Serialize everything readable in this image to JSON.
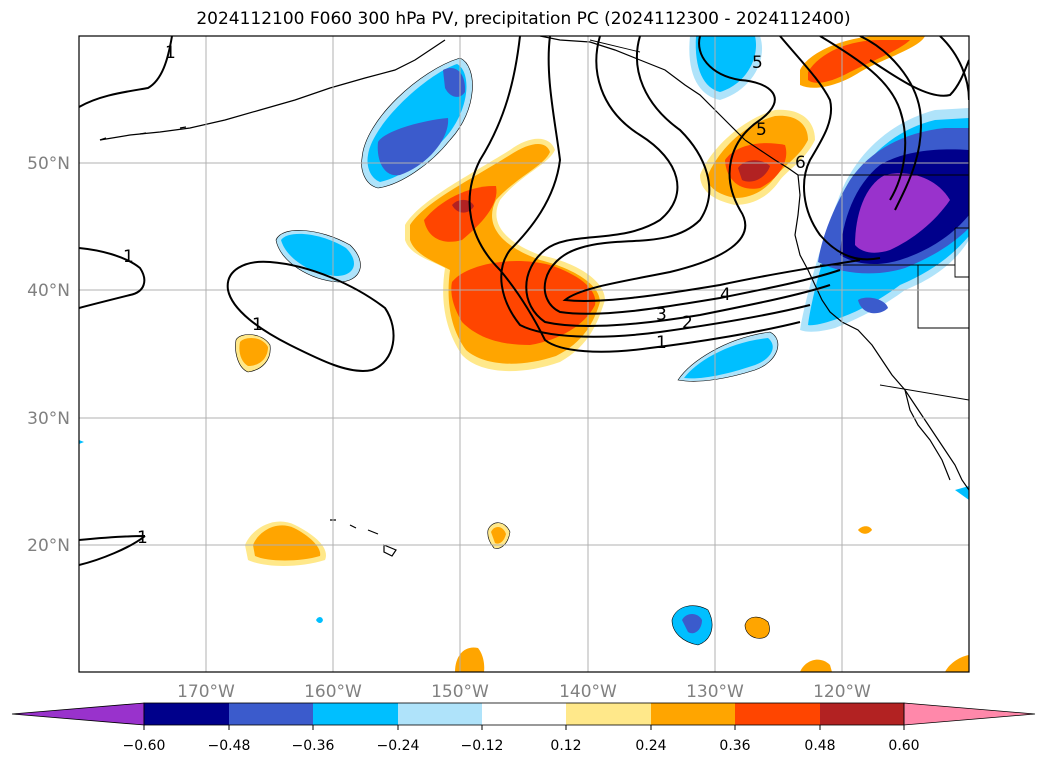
{
  "title": "2024112100 F060 300 hPa PV, precipitation PC (2024112300 - 2024112400)",
  "map": {
    "lon_range": [
      -180,
      -110
    ],
    "lat_range": [
      10,
      60
    ],
    "lon_ticks": [
      {
        "value": -170,
        "label": "170°W"
      },
      {
        "value": -160,
        "label": "160°W"
      },
      {
        "value": -150,
        "label": "150°W"
      },
      {
        "value": -140,
        "label": "140°W"
      },
      {
        "value": -130,
        "label": "130°W"
      },
      {
        "value": -120,
        "label": "120°W"
      }
    ],
    "lat_ticks": [
      {
        "value": 50,
        "label": "50°N"
      },
      {
        "value": 40,
        "label": "40°N"
      },
      {
        "value": 30,
        "label": "30°N"
      },
      {
        "value": 20,
        "label": "20°N"
      }
    ],
    "grid": true,
    "contour_labels": [
      {
        "text": "1",
        "lon": -171,
        "lat": 60
      },
      {
        "text": "1",
        "lon": -173,
        "lat": 42.5
      },
      {
        "text": "1",
        "lon": -160,
        "lat": 37
      },
      {
        "text": "1",
        "lon": -174,
        "lat": 20.5
      },
      {
        "text": "1",
        "lon": -138,
        "lat": 33.5
      },
      {
        "text": "2",
        "lon": -136,
        "lat": 35
      },
      {
        "text": "3",
        "lon": -138,
        "lat": 35.8
      },
      {
        "text": "4",
        "lon": -131,
        "lat": 38.2
      },
      {
        "text": "5",
        "lon": -126,
        "lat": 57.5
      },
      {
        "text": "5",
        "lon": -126,
        "lat": 52.5
      },
      {
        "text": "6",
        "lon": -123,
        "lat": 48.5
      }
    ]
  },
  "colorbar": {
    "boundaries": [
      "−0.60",
      "−0.48",
      "−0.36",
      "−0.24",
      "−0.12",
      "0.12",
      "0.24",
      "0.36",
      "0.48",
      "0.60"
    ],
    "colors": [
      "#9932cc",
      "#00008b",
      "#3b5bcc",
      "#00bfff",
      "#afe3fa",
      "#ffffff",
      "#ffe88a",
      "#ffa500",
      "#ff4500",
      "#b22222",
      "#ff88aa"
    ],
    "extend": "both"
  },
  "precip_colors": {
    "neg1": "#afe3fa",
    "neg2": "#00bfff",
    "neg3": "#3b5bcc",
    "neg4": "#00008b",
    "neg5": "#9932cc",
    "pos1": "#ffe88a",
    "pos2": "#ffa500",
    "pos3": "#ff4500",
    "pos4": "#b22222"
  }
}
